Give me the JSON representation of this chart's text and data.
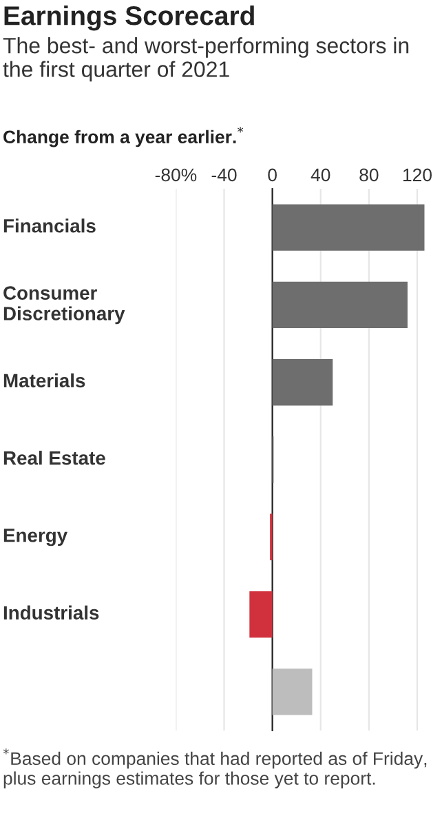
{
  "chart_data": {
    "type": "bar",
    "orientation": "horizontal",
    "title": "Earnings Scorecard",
    "subtitle": "The best- and worst-performing sectors in the first quarter of 2021",
    "xlabel": "Change from a year earlier.$^{*}$",
    "categories": [
      "Financials",
      "Consumer Discretionary",
      "Materials",
      "Real Estate",
      "Energy",
      "Industrials",
      null
    ],
    "values": [
      126,
      112,
      50,
      1,
      -2,
      -19,
      33
    ],
    "colors": [
      "#6e6e6e",
      "#6e6e6e",
      "#6e6e6e",
      "#6e6e6e",
      "#d0313c",
      "#d0313c",
      "#bdbdbd"
    ],
    "xlim": [
      -80,
      128
    ],
    "xticks": [
      {
        "value": -80,
        "label": "-80%"
      },
      -40,
      0,
      40,
      80,
      120
    ],
    "grid": "x",
    "annotations": [
      "$^{*}$Based on companies that had reported as of Friday, plus earnings estimates for those yet to report."
    ]
  }
}
